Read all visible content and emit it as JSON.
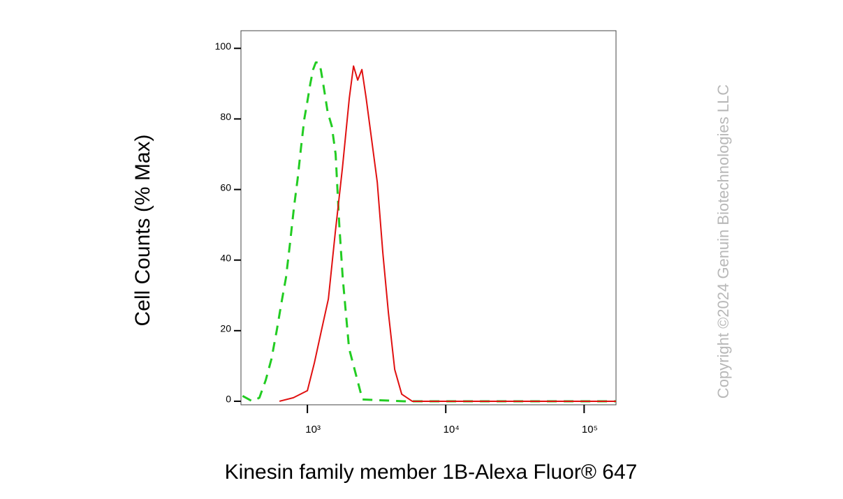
{
  "chart_data": {
    "type": "line",
    "x_label": "Kinesin family member 1B-Alexa Fluor® 647",
    "y_label": "Cell Counts (% Max)",
    "annotation": "Copyright ©2024 Genuin Biotechnologies LLC",
    "xscale": "log",
    "xlim": [
      331,
      170000
    ],
    "xticks": [
      {
        "value": 1000,
        "label": "10³"
      },
      {
        "value": 10000,
        "label": "10⁴"
      },
      {
        "value": 100000,
        "label": "10⁵"
      }
    ],
    "ylim": [
      -1,
      105
    ],
    "yticks": [
      0,
      20,
      40,
      60,
      80,
      100
    ],
    "series": [
      {
        "color": "#22cc22",
        "dash": true,
        "x": [
          340,
          400,
          450,
          500,
          550,
          600,
          650,
          700,
          750,
          800,
          850,
          900,
          950,
          1000,
          1050,
          1100,
          1150,
          1200,
          1250,
          1300,
          1350,
          1400,
          1500,
          1600,
          1700,
          1800,
          2000,
          2500,
          5000,
          20000,
          170000
        ],
        "values": [
          1.5,
          0,
          1,
          6,
          12,
          20,
          28,
          35,
          45,
          55,
          63,
          72,
          80,
          85,
          90,
          94,
          96,
          96,
          94,
          90,
          86,
          82,
          78,
          70,
          50,
          35,
          15,
          0.5,
          0,
          0,
          0
        ]
      },
      {
        "color": "#e01010",
        "dash": false,
        "x": [
          628,
          792,
          1000,
          1125,
          1262,
          1418,
          1592,
          1790,
          2010,
          2154,
          2310,
          2477,
          2656,
          2916,
          3200,
          3510,
          3852,
          4276,
          4806,
          5725,
          170000
        ],
        "values": [
          0,
          1,
          3,
          11,
          20,
          29,
          48,
          66,
          86,
          95,
          91,
          94,
          86,
          74,
          62,
          42,
          25,
          9,
          2,
          0,
          0
        ]
      }
    ]
  }
}
